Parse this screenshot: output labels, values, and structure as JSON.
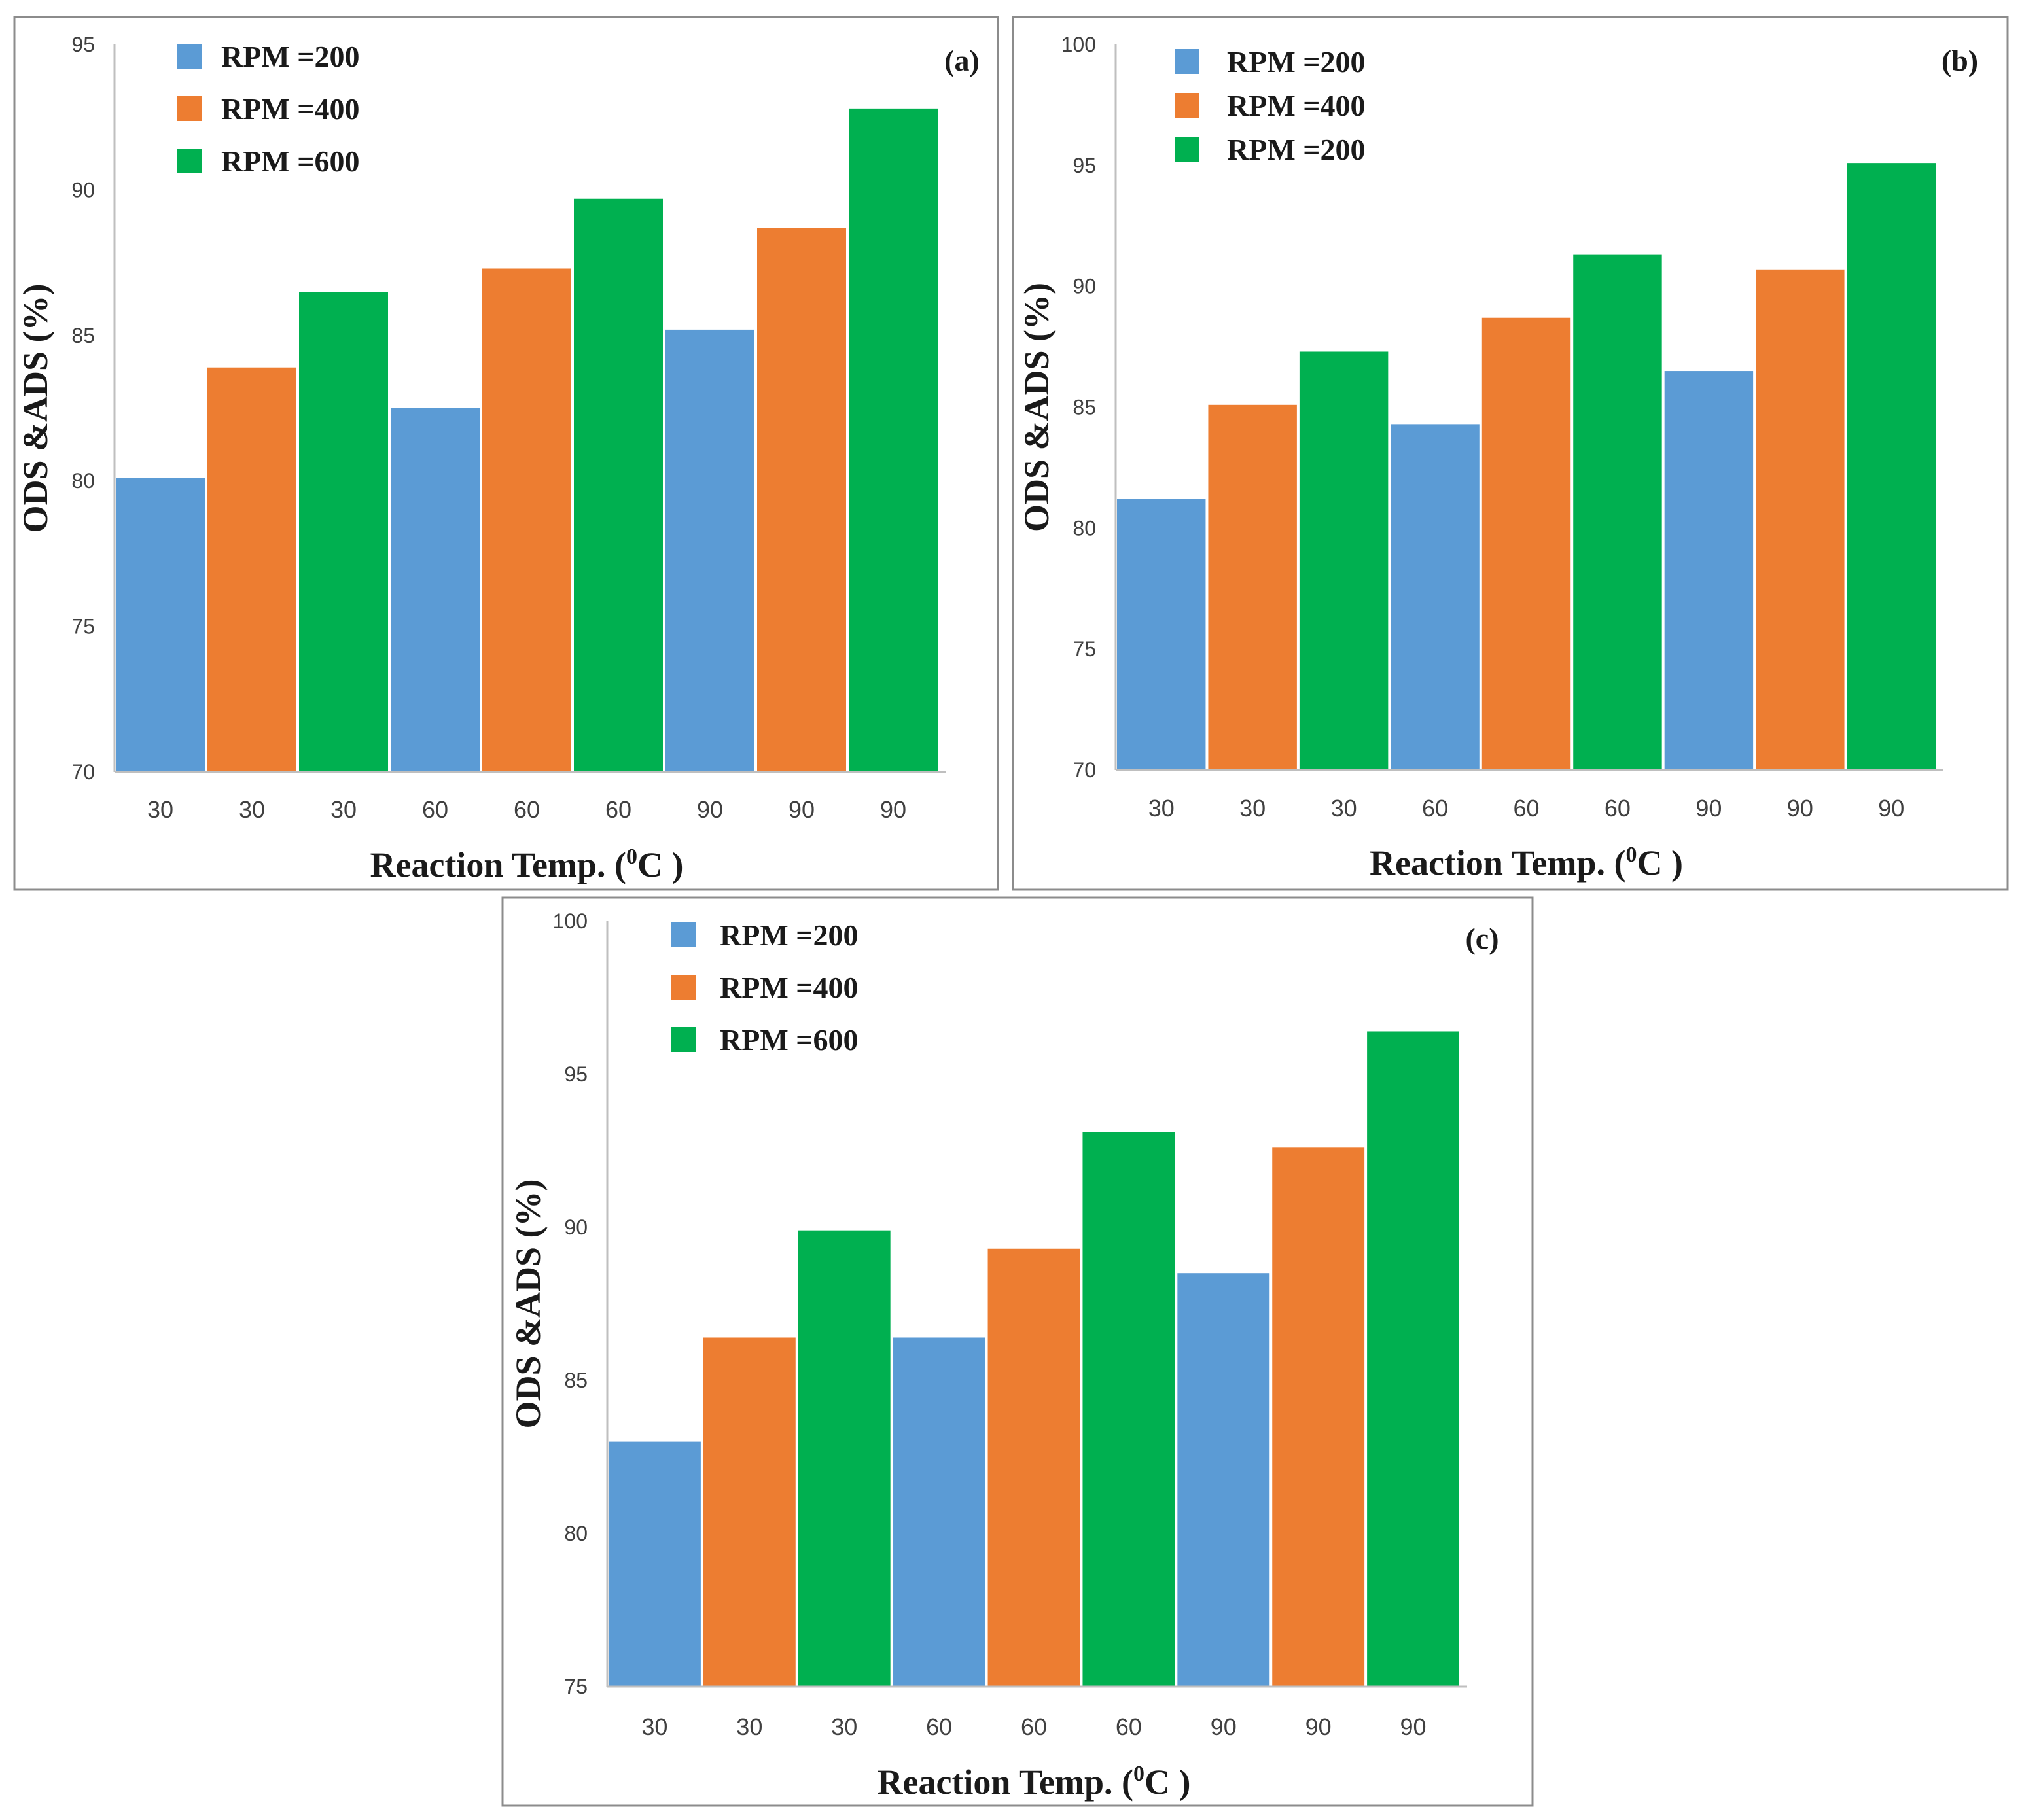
{
  "chart_data": [
    {
      "type": "bar",
      "panel_label": "(a)",
      "categories": [
        "30",
        "30",
        "30",
        "60",
        "60",
        "60",
        "90",
        "90",
        "90"
      ],
      "series": [
        {
          "name": "RPM =200",
          "color": "#5b9bd5"
        },
        {
          "name": "RPM =400",
          "color": "#ed7d31"
        },
        {
          "name": "RPM =600",
          "color": "#00b050"
        }
      ],
      "bar_series": [
        0,
        1,
        2,
        0,
        1,
        2,
        0,
        1,
        2
      ],
      "values": [
        80.1,
        83.9,
        86.5,
        82.5,
        87.3,
        89.7,
        85.2,
        88.7,
        92.8
      ],
      "ylim": [
        70,
        95
      ],
      "yticks": [
        "70",
        "75",
        "80",
        "85",
        "90",
        "95"
      ],
      "xlabel_main": "Reaction Temp. (",
      "xlabel_sup": "0",
      "xlabel_tail": "C )",
      "ylabel": "ODS &ADS (%)"
    },
    {
      "type": "bar",
      "panel_label": "(b)",
      "categories": [
        "30",
        "30",
        "30",
        "60",
        "60",
        "60",
        "90",
        "90",
        "90"
      ],
      "series": [
        {
          "name": "RPM =200",
          "color": "#5b9bd5"
        },
        {
          "name": "RPM =400",
          "color": "#ed7d31"
        },
        {
          "name": "RPM =200",
          "color": "#00b050"
        }
      ],
      "bar_series": [
        0,
        1,
        2,
        0,
        1,
        2,
        0,
        1,
        2
      ],
      "values": [
        81.2,
        85.1,
        87.3,
        84.3,
        88.7,
        91.3,
        86.5,
        90.7,
        95.1
      ],
      "ylim": [
        70,
        100
      ],
      "yticks": [
        "70",
        "75",
        "80",
        "85",
        "90",
        "95",
        "100"
      ],
      "xlabel_main": "Reaction Temp. (",
      "xlabel_sup": "0",
      "xlabel_tail": "C )",
      "ylabel": "ODS &ADS (%)"
    },
    {
      "type": "bar",
      "panel_label": "(c)",
      "categories": [
        "30",
        "30",
        "30",
        "60",
        "60",
        "60",
        "90",
        "90",
        "90"
      ],
      "series": [
        {
          "name": "RPM =200",
          "color": "#5b9bd5"
        },
        {
          "name": "RPM =400",
          "color": "#ed7d31"
        },
        {
          "name": "RPM =600",
          "color": "#00b050"
        }
      ],
      "bar_series": [
        0,
        1,
        2,
        0,
        1,
        2,
        0,
        1,
        2
      ],
      "values": [
        83.0,
        86.4,
        89.9,
        86.4,
        89.3,
        93.1,
        88.5,
        92.6,
        96.4
      ],
      "ylim": [
        75,
        100
      ],
      "yticks": [
        "75",
        "80",
        "85",
        "90",
        "95",
        "100"
      ],
      "xlabel_main": "Reaction Temp. (",
      "xlabel_sup": "0",
      "xlabel_tail": "C )",
      "ylabel": "ODS &ADS (%)"
    }
  ]
}
